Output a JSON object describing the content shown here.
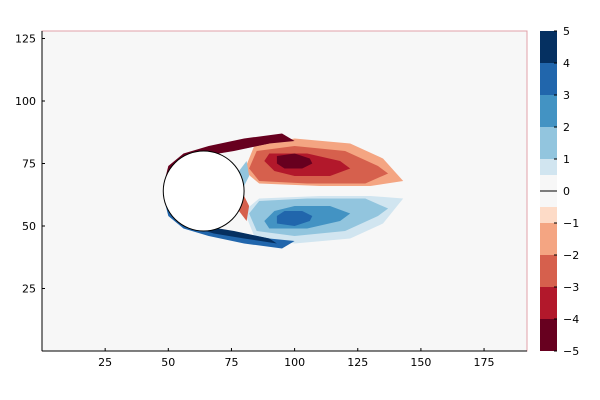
{
  "chart_data": {
    "type": "heatmap",
    "subtype": "filled-contour",
    "title": "",
    "xlabel": "",
    "ylabel": "",
    "xlim": [
      0,
      192
    ],
    "ylim": [
      0,
      128
    ],
    "x_ticks": [
      25,
      50,
      75,
      100,
      125,
      150,
      175
    ],
    "y_ticks": [
      25,
      50,
      75,
      100,
      125
    ],
    "grid": false,
    "cylinder": {
      "center": [
        64,
        64
      ],
      "radius": 16,
      "fill": "#ffffff",
      "stroke": "#000000"
    },
    "colorbar": {
      "range": [
        -5,
        5
      ],
      "ticks": [
        -5,
        -4,
        -3,
        -2,
        -1,
        0,
        1,
        2,
        3,
        4,
        5
      ],
      "levels": [
        {
          "from": -5,
          "to": -4,
          "color": "#67001f"
        },
        {
          "from": -4,
          "to": -3,
          "color": "#b2182b"
        },
        {
          "from": -3,
          "to": -2,
          "color": "#d6604d"
        },
        {
          "from": -2,
          "to": -1,
          "color": "#f4a582"
        },
        {
          "from": -1,
          "to": -0.5,
          "color": "#fddbc7"
        },
        {
          "from": -0.5,
          "to": 0.5,
          "color": "#f7f7f7"
        },
        {
          "from": 0.5,
          "to": 1,
          "color": "#d1e5f0"
        },
        {
          "from": 1,
          "to": 2,
          "color": "#92c5de"
        },
        {
          "from": 2,
          "to": 3,
          "color": "#4393c3"
        },
        {
          "from": 3,
          "to": 4,
          "color": "#2166ac"
        },
        {
          "from": 4,
          "to": 5,
          "color": "#053061"
        }
      ]
    },
    "background_level": 0,
    "vortex_regions": [
      {
        "name": "upper-wake-outer",
        "level": -1,
        "polygon": [
          [
            84,
            82
          ],
          [
            100,
            85
          ],
          [
            122,
            83
          ],
          [
            135,
            77
          ],
          [
            143,
            68
          ],
          [
            130,
            66
          ],
          [
            110,
            66
          ],
          [
            86,
            67
          ],
          [
            80,
            72
          ]
        ]
      },
      {
        "name": "upper-wake-mid",
        "level": -2,
        "polygon": [
          [
            85,
            80
          ],
          [
            100,
            82
          ],
          [
            120,
            80
          ],
          [
            133,
            74
          ],
          [
            137,
            71
          ],
          [
            128,
            67
          ],
          [
            105,
            67
          ],
          [
            86,
            68
          ],
          [
            82,
            73
          ]
        ]
      },
      {
        "name": "upper-wake-inner",
        "level": -3,
        "polygon": [
          [
            90,
            79
          ],
          [
            105,
            79
          ],
          [
            118,
            76
          ],
          [
            122,
            73
          ],
          [
            114,
            70
          ],
          [
            100,
            70
          ],
          [
            92,
            72
          ],
          [
            88,
            76
          ]
        ]
      },
      {
        "name": "upper-wake-core",
        "level": -4,
        "polygon": [
          [
            93,
            78
          ],
          [
            100,
            79
          ],
          [
            106,
            77
          ],
          [
            107,
            75
          ],
          [
            103,
            73
          ],
          [
            96,
            73
          ],
          [
            93,
            75
          ]
        ]
      },
      {
        "name": "lower-wake-outer",
        "level": 1,
        "polygon": [
          [
            84,
            46
          ],
          [
            100,
            43
          ],
          [
            122,
            45
          ],
          [
            135,
            51
          ],
          [
            143,
            61
          ],
          [
            130,
            62
          ],
          [
            110,
            62
          ],
          [
            86,
            61
          ],
          [
            80,
            56
          ]
        ]
      },
      {
        "name": "lower-wake-mid",
        "level": 2,
        "polygon": [
          [
            85,
            48
          ],
          [
            100,
            46
          ],
          [
            120,
            48
          ],
          [
            133,
            54
          ],
          [
            137,
            57
          ],
          [
            128,
            61
          ],
          [
            105,
            61
          ],
          [
            86,
            60
          ],
          [
            82,
            55
          ]
        ]
      },
      {
        "name": "lower-wake-inner",
        "level": 3,
        "polygon": [
          [
            90,
            49
          ],
          [
            105,
            49
          ],
          [
            118,
            52
          ],
          [
            122,
            55
          ],
          [
            114,
            58
          ],
          [
            100,
            58
          ],
          [
            92,
            56
          ],
          [
            88,
            52
          ]
        ]
      },
      {
        "name": "lower-wake-core",
        "level": 4,
        "polygon": [
          [
            93,
            51
          ],
          [
            100,
            50
          ],
          [
            106,
            52
          ],
          [
            107,
            54
          ],
          [
            103,
            56
          ],
          [
            96,
            56
          ],
          [
            93,
            54
          ]
        ]
      },
      {
        "name": "upper-shear-layer-outer",
        "level": -4,
        "polygon": [
          [
            48,
            66
          ],
          [
            50,
            74
          ],
          [
            56,
            79
          ],
          [
            66,
            82
          ],
          [
            80,
            85
          ],
          [
            95,
            87
          ],
          [
            100,
            84
          ],
          [
            90,
            83
          ],
          [
            75,
            80
          ],
          [
            64,
            78
          ],
          [
            56,
            74
          ],
          [
            51,
            68
          ]
        ]
      },
      {
        "name": "upper-shear-layer-core",
        "level": -5,
        "polygon": [
          [
            49,
            67
          ],
          [
            52,
            74
          ],
          [
            58,
            78
          ],
          [
            68,
            81
          ],
          [
            80,
            83
          ],
          [
            93,
            85
          ],
          [
            90,
            83
          ],
          [
            76,
            80
          ],
          [
            64,
            78
          ],
          [
            56,
            73
          ],
          [
            52,
            68
          ]
        ]
      },
      {
        "name": "lower-shear-layer-outer",
        "level": 4,
        "polygon": [
          [
            48,
            62
          ],
          [
            50,
            54
          ],
          [
            56,
            49
          ],
          [
            66,
            46
          ],
          [
            80,
            43
          ],
          [
            95,
            41
          ],
          [
            100,
            44
          ],
          [
            90,
            45
          ],
          [
            75,
            48
          ],
          [
            64,
            50
          ],
          [
            56,
            54
          ],
          [
            51,
            60
          ]
        ]
      },
      {
        "name": "lower-shear-layer-core",
        "level": 5,
        "polygon": [
          [
            49,
            61
          ],
          [
            52,
            54
          ],
          [
            58,
            50
          ],
          [
            68,
            47
          ],
          [
            80,
            45
          ],
          [
            93,
            43
          ],
          [
            90,
            45
          ],
          [
            76,
            48
          ],
          [
            64,
            50
          ],
          [
            56,
            55
          ],
          [
            52,
            60
          ]
        ]
      },
      {
        "name": "rear-attached-upper",
        "level": 2,
        "polygon": [
          [
            78,
            72
          ],
          [
            81,
            76
          ],
          [
            82,
            70
          ],
          [
            80,
            66
          ]
        ]
      },
      {
        "name": "rear-attached-lower",
        "level": -2,
        "polygon": [
          [
            78,
            56
          ],
          [
            81,
            52
          ],
          [
            82,
            58
          ],
          [
            80,
            62
          ]
        ]
      }
    ]
  }
}
